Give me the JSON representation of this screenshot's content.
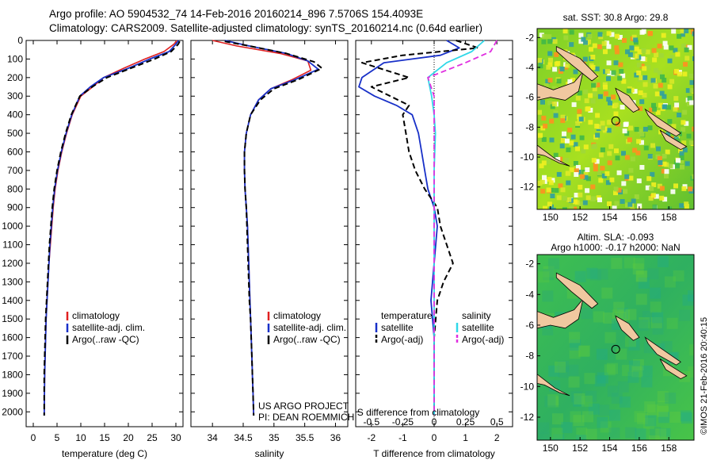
{
  "titles": {
    "line1": "Argo profile: AO 5904532_74 14-Feb-2016 20160214_896 7.5706S 154.4093E",
    "line2": "Climatology: CARS2009. Satellite-adjusted climatology: synTS_20160214.nc (0.64d earlier)"
  },
  "credit": "©IMOS 21-Feb-2016 20:40:15",
  "project": {
    "line1": "US ARGO PROJECT",
    "line2": "PI: DEAN ROEMMICH"
  },
  "colors": {
    "climatology": "#e02020",
    "satellite": "#1830c8",
    "argo": "#000000",
    "sal_satellite": "#30d8e8",
    "sal_argo": "#e030e0"
  },
  "chart_data": [
    {
      "type": "line",
      "xlabel": "temperature (deg C)",
      "ylim": [
        2080,
        0
      ],
      "xlim": [
        -1.5,
        31.5
      ],
      "xticks": [
        0,
        5,
        10,
        15,
        20,
        25,
        30
      ],
      "yticks": [
        0,
        100,
        200,
        300,
        400,
        500,
        600,
        700,
        800,
        900,
        1000,
        1100,
        1200,
        1300,
        1400,
        1500,
        1600,
        1700,
        1800,
        1900,
        2000
      ],
      "legend": [
        "climatology",
        "satellite-adj. clim.",
        "Argo(..raw -QC)"
      ],
      "series": [
        {
          "name": "climatology",
          "x": [
            30.2,
            29.6,
            27.5,
            23.5,
            19.0,
            14.8,
            12.5,
            10.0,
            8.2,
            7.0,
            6.0,
            5.2,
            4.6,
            4.2,
            3.9,
            3.6,
            3.3,
            3.1,
            2.9,
            2.7,
            2.6,
            2.5,
            2.4,
            2.3
          ],
          "y": [
            0,
            20,
            60,
            100,
            150,
            200,
            250,
            300,
            400,
            500,
            600,
            700,
            800,
            900,
            1000,
            1100,
            1200,
            1300,
            1400,
            1500,
            1600,
            1700,
            1800,
            2020
          ]
        },
        {
          "name": "satellite-adj. clim.",
          "x": [
            30.6,
            30.0,
            28.6,
            24.5,
            20.0,
            14.8,
            12.0,
            9.8,
            8.1,
            6.9,
            5.9,
            5.1,
            4.5,
            4.1,
            3.8,
            3.5,
            3.3,
            3.1,
            2.9,
            2.7,
            2.6,
            2.5,
            2.4,
            2.3
          ],
          "y": [
            0,
            20,
            60,
            100,
            150,
            200,
            250,
            300,
            400,
            500,
            600,
            700,
            800,
            900,
            1000,
            1100,
            1200,
            1300,
            1400,
            1500,
            1600,
            1700,
            1800,
            2020
          ]
        },
        {
          "name": "Argo(..raw -QC)",
          "x": [
            30.8,
            30.5,
            29.0,
            25.5,
            20.5,
            15.5,
            12.4,
            9.8,
            8.0,
            6.8,
            5.8,
            5.0,
            4.4,
            4.0,
            3.7,
            3.4,
            3.2,
            3.0,
            2.8,
            2.6,
            2.5,
            2.4,
            2.3,
            2.3
          ],
          "y": [
            5,
            20,
            60,
            100,
            150,
            200,
            250,
            300,
            400,
            500,
            600,
            700,
            800,
            900,
            1000,
            1100,
            1200,
            1300,
            1400,
            1500,
            1600,
            1700,
            1800,
            2020
          ]
        }
      ]
    },
    {
      "type": "line",
      "xlabel": "salinity",
      "ylim": [
        2080,
        0
      ],
      "xlim": [
        33.65,
        36.2
      ],
      "xticks": [
        34,
        34.5,
        35,
        35.5,
        36
      ],
      "legend": [
        "climatology",
        "satellite-adj. clim.",
        "Argo(..raw -QC)"
      ],
      "series": [
        {
          "name": "climatology",
          "x": [
            34.0,
            34.4,
            35.1,
            35.55,
            35.6,
            35.3,
            34.95,
            34.75,
            34.62,
            34.55,
            34.52,
            34.52,
            34.53,
            34.55,
            34.57,
            34.59,
            34.61,
            34.62,
            34.63,
            34.64,
            34.65,
            34.66,
            34.67
          ],
          "y": [
            0,
            30,
            70,
            110,
            160,
            210,
            260,
            320,
            400,
            500,
            600,
            700,
            800,
            900,
            1000,
            1200,
            1400,
            1500,
            1600,
            1700,
            1800,
            1900,
            2020
          ]
        },
        {
          "name": "satellite-adj. clim.",
          "x": [
            34.2,
            34.6,
            35.2,
            35.55,
            35.72,
            35.35,
            34.95,
            34.75,
            34.62,
            34.55,
            34.52,
            34.52,
            34.53,
            34.55,
            34.57,
            34.59,
            34.61,
            34.62,
            34.63,
            34.64,
            34.65,
            34.66,
            34.67
          ],
          "y": [
            0,
            30,
            70,
            110,
            155,
            210,
            260,
            320,
            400,
            500,
            600,
            700,
            800,
            900,
            1000,
            1200,
            1400,
            1500,
            1600,
            1700,
            1800,
            1900,
            2020
          ]
        },
        {
          "name": "Argo(..raw -QC)",
          "x": [
            34.2,
            34.6,
            35.2,
            35.65,
            35.78,
            35.4,
            35.0,
            34.78,
            34.62,
            34.55,
            34.52,
            34.52,
            34.53,
            34.55,
            34.56,
            34.58,
            34.6,
            34.62,
            34.63,
            34.64,
            34.65,
            34.66,
            34.67
          ],
          "y": [
            5,
            30,
            70,
            115,
            150,
            210,
            260,
            320,
            400,
            500,
            600,
            700,
            800,
            900,
            1000,
            1200,
            1400,
            1500,
            1600,
            1700,
            1800,
            1900,
            2020
          ]
        }
      ]
    },
    {
      "type": "line",
      "xlabel": "T difference from climatology",
      "top_axis_label": "S difference from climatology",
      "ylim": [
        2080,
        0
      ],
      "xlim": [
        -2.5,
        2.5
      ],
      "xticks": [
        -2,
        -1,
        0,
        1,
        2
      ],
      "top_xticks": [
        "-0.5",
        "-0.25",
        "0",
        "0.25",
        "0.5"
      ],
      "legend_temperature": [
        "temperature",
        "satellite",
        "Argo(-adj)"
      ],
      "legend_salinity": [
        "salinity",
        "satellite",
        "Argo(-adj)"
      ],
      "series": [
        {
          "name": "temperature satellite",
          "x": [
            0.4,
            0.8,
            0.2,
            -1.6,
            -2.3,
            -2.4,
            -1.9,
            -1.2,
            -0.7,
            -0.5,
            -0.4,
            -0.3,
            -0.2,
            0.0,
            0.1,
            0.0,
            -0.1,
            0.0,
            0.0,
            0.0,
            0.0
          ],
          "y": [
            0,
            40,
            80,
            120,
            200,
            250,
            300,
            350,
            400,
            500,
            600,
            700,
            800,
            900,
            1000,
            1200,
            1400,
            1600,
            1800,
            1900,
            2020
          ]
        },
        {
          "name": "temperature Argo(-adj)",
          "x": [
            0.7,
            1.4,
            -1.0,
            -2.3,
            -0.8,
            -2.0,
            -1.4,
            -0.8,
            -1.0,
            -0.9,
            -0.8,
            -0.6,
            -0.3,
            0.1,
            0.2,
            0.6,
            0.3,
            0.1,
            0.0,
            0.0,
            0.0
          ],
          "y": [
            0,
            40,
            80,
            120,
            200,
            250,
            300,
            350,
            400,
            500,
            600,
            700,
            800,
            900,
            1000,
            1200,
            1300,
            1400,
            1600,
            1800,
            2020
          ]
        },
        {
          "name": "salinity satellite",
          "x": [
            0.4,
            0.3,
            0.1,
            -0.05,
            -0.02,
            0.0,
            0.01,
            0.0,
            0.0,
            0.0,
            0.0,
            0.0,
            0.0,
            0.0
          ],
          "y": [
            0,
            60,
            120,
            200,
            300,
            400,
            500,
            700,
            1000,
            1200,
            1400,
            1600,
            1800,
            2020
          ]
        },
        {
          "name": "salinity Argo(-adj)",
          "x": [
            0.5,
            0.45,
            0.25,
            -0.05,
            0.0,
            0.0,
            0.0,
            0.0,
            0.0,
            0.0,
            0.0,
            0.0,
            0.0,
            0.0
          ],
          "y": [
            0,
            60,
            120,
            200,
            300,
            400,
            500,
            700,
            1000,
            1200,
            1400,
            1600,
            1800,
            2020
          ]
        }
      ]
    },
    {
      "type": "heatmap",
      "title": "sat. SST: 30.8  Argo: 29.8",
      "xticks": [
        150,
        152,
        154,
        156,
        158
      ],
      "yticks": [
        -2,
        -4,
        -6,
        -8,
        -10,
        -12
      ],
      "xlim": [
        149.1,
        159.7
      ],
      "ylim": [
        -13.5,
        -1.4
      ],
      "marker": {
        "lon": 154.41,
        "lat": -7.57
      }
    },
    {
      "type": "heatmap",
      "title": "Altim. SLA: -0.093",
      "subtitle": "Argo h1000: -0.17 h2000: NaN",
      "xticks": [
        150,
        152,
        154,
        156,
        158
      ],
      "yticks": [
        -2,
        -4,
        -6,
        -8,
        -10,
        -12
      ],
      "xlim": [
        149.1,
        159.7
      ],
      "ylim": [
        -13.5,
        -1.4
      ],
      "marker": {
        "lon": 154.41,
        "lat": -7.57
      }
    }
  ]
}
